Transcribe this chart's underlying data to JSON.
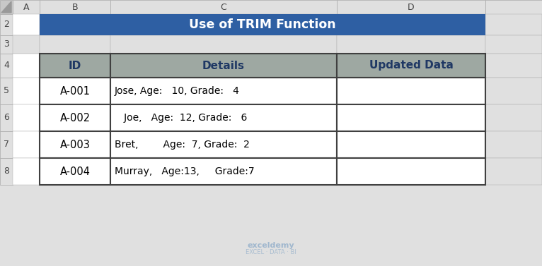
{
  "title": "Use of TRIM Function",
  "title_bg": "#2E5FA3",
  "title_fg": "#FFFFFF",
  "header_bg": "#9EA8A2",
  "header_fg": "#1F3864",
  "cell_bg": "#FFFFFF",
  "cell_fg": "#000000",
  "border_color": "#404040",
  "col_headers": [
    "A",
    "B",
    "C",
    "D"
  ],
  "row_labels": [
    "2",
    "3",
    "4",
    "5",
    "6",
    "7",
    "8"
  ],
  "table_headers": [
    "ID",
    "Details",
    "Updated Data"
  ],
  "rows": [
    [
      "A-001",
      "Jose, Age:   10, Grade:   4",
      ""
    ],
    [
      "A-002",
      "   Joe,   Age:  12, Grade:   6",
      ""
    ],
    [
      "A-003",
      "Bret,        Age:  7, Grade:  2",
      ""
    ],
    [
      "A-004",
      "Murray,   Age:13,     Grade:7",
      ""
    ]
  ],
  "outer_bg": "#E0E0E0",
  "grid_line_color": "#AAAAAA",
  "corner_bg": "#C8C8C8"
}
